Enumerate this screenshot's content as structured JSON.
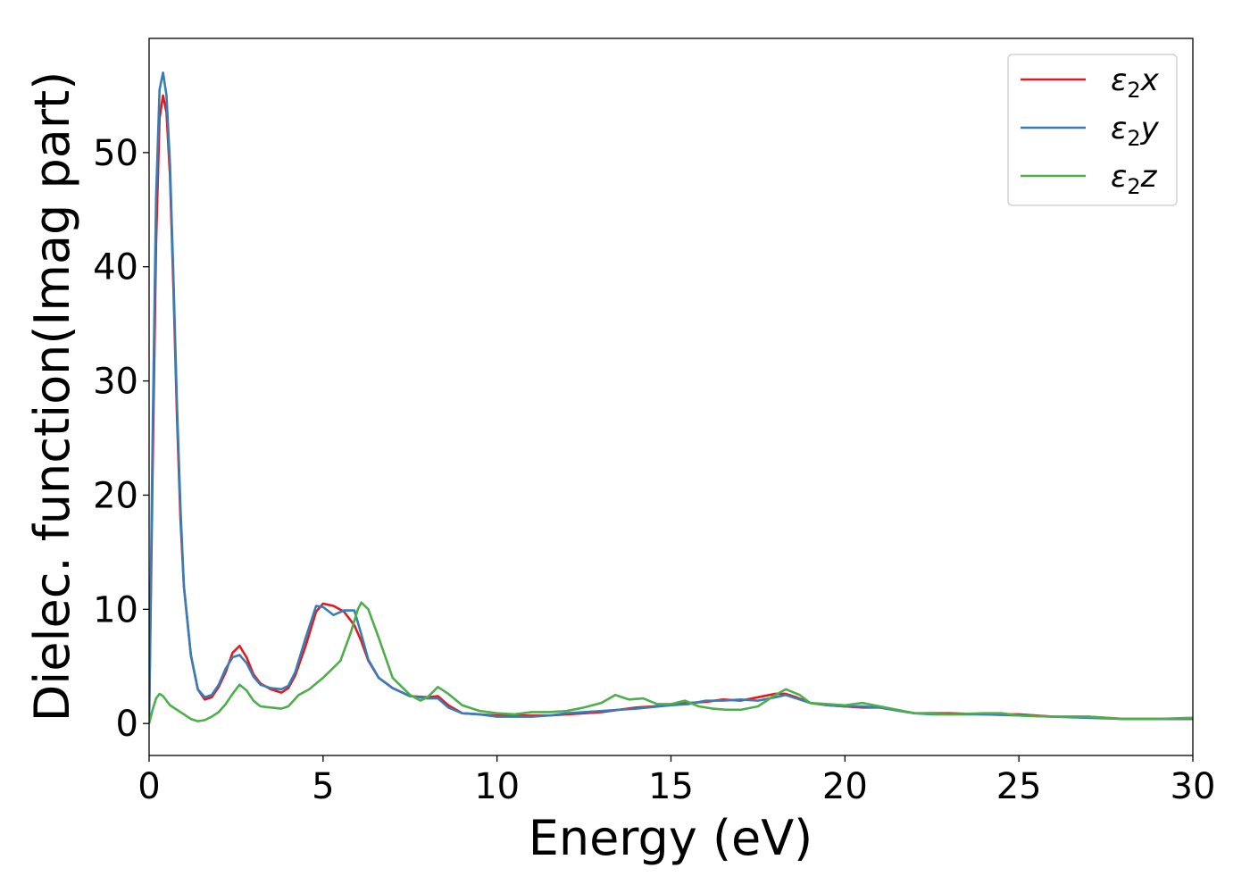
{
  "chart_data": {
    "type": "line",
    "title": "",
    "xlabel": "Energy (eV)",
    "ylabel": "Dielec. function(Imag part)",
    "xlim": [
      0,
      30
    ],
    "ylim": [
      -2.8,
      60
    ],
    "xticks": [
      0,
      5,
      10,
      15,
      20,
      25,
      30
    ],
    "yticks": [
      0,
      10,
      20,
      30,
      40,
      50
    ],
    "grid": false,
    "legend_position": "top-right",
    "series": [
      {
        "name": "ε₂x",
        "legend": {
          "base": "ε",
          "sub": "2",
          "suffix": "x"
        },
        "color": "#e41a1c",
        "x": [
          0,
          0.1,
          0.2,
          0.3,
          0.4,
          0.5,
          0.6,
          0.7,
          0.8,
          0.9,
          1.0,
          1.2,
          1.4,
          1.6,
          1.8,
          2.0,
          2.2,
          2.4,
          2.6,
          2.8,
          3.0,
          3.2,
          3.5,
          3.8,
          4.0,
          4.2,
          4.5,
          4.8,
          5.0,
          5.3,
          5.6,
          5.9,
          6.1,
          6.3,
          6.6,
          7.0,
          7.5,
          8.0,
          8.3,
          8.6,
          9.0,
          9.5,
          10.0,
          10.5,
          11.0,
          11.5,
          12.0,
          13.0,
          14.0,
          15.0,
          15.5,
          16.0,
          16.5,
          17.0,
          17.5,
          18.0,
          18.3,
          18.6,
          19.0,
          19.5,
          20.0,
          20.5,
          21.0,
          22.0,
          22.5,
          23.0,
          24.0,
          25.0,
          26.0,
          27.0,
          28.0,
          29.0,
          30.0
        ],
        "y": [
          0,
          22,
          42,
          53,
          55,
          53.5,
          48,
          38,
          27,
          18,
          12,
          6,
          3,
          2.1,
          2.3,
          3.2,
          4.5,
          6.2,
          6.8,
          5.8,
          4.3,
          3.5,
          3,
          2.7,
          3.1,
          4.2,
          6.8,
          9.8,
          10.5,
          10.3,
          9.8,
          8.6,
          7.2,
          5.5,
          4,
          3.1,
          2.4,
          2.3,
          2.4,
          1.6,
          0.9,
          0.8,
          0.7,
          0.7,
          0.7,
          0.7,
          0.8,
          1,
          1.4,
          1.6,
          1.8,
          1.9,
          2.1,
          2.0,
          2.3,
          2.6,
          2.6,
          2.3,
          1.8,
          1.6,
          1.5,
          1.4,
          1.4,
          0.9,
          0.9,
          0.9,
          0.8,
          0.8,
          0.6,
          0.6,
          0.4,
          0.4,
          0.4
        ]
      },
      {
        "name": "ε₂y",
        "legend": {
          "base": "ε",
          "sub": "2",
          "suffix": "y"
        },
        "color": "#377eb8",
        "x": [
          0,
          0.1,
          0.2,
          0.3,
          0.4,
          0.5,
          0.6,
          0.7,
          0.8,
          0.9,
          1.0,
          1.2,
          1.4,
          1.6,
          1.8,
          2.0,
          2.2,
          2.4,
          2.6,
          2.8,
          3.0,
          3.2,
          3.5,
          3.8,
          4.0,
          4.2,
          4.5,
          4.8,
          5.0,
          5.3,
          5.6,
          5.9,
          6.1,
          6.3,
          6.6,
          7.0,
          7.5,
          8.0,
          8.3,
          8.6,
          9.0,
          9.5,
          10.0,
          10.5,
          11.0,
          11.5,
          12.0,
          13.0,
          14.0,
          15.0,
          15.5,
          16.0,
          16.5,
          17.0,
          17.5,
          18.0,
          18.3,
          18.6,
          19.0,
          19.5,
          20.0,
          20.5,
          21.0,
          22.0,
          22.5,
          23.0,
          24.0,
          25.0,
          26.0,
          27.0,
          28.0,
          29.0,
          30.0
        ],
        "y": [
          0,
          25,
          46,
          55.5,
          57,
          55,
          49,
          39,
          28,
          19,
          12,
          6,
          3,
          2.3,
          2.5,
          3.4,
          4.8,
          5.8,
          6,
          5.3,
          4.1,
          3.4,
          3.1,
          3,
          3.3,
          4.5,
          7.5,
          10.3,
          10.2,
          9.5,
          9.9,
          9.9,
          7.8,
          5.6,
          4,
          3.1,
          2.4,
          2.2,
          2.2,
          1.4,
          0.9,
          0.8,
          0.6,
          0.6,
          0.6,
          0.7,
          0.9,
          1.1,
          1.3,
          1.6,
          1.7,
          2.0,
          2.0,
          2.1,
          2.0,
          2.3,
          2.5,
          2.2,
          1.8,
          1.6,
          1.5,
          1.5,
          1.4,
          0.9,
          0.8,
          0.8,
          0.8,
          0.7,
          0.6,
          0.5,
          0.4,
          0.4,
          0.4
        ]
      },
      {
        "name": "ε₂z",
        "legend": {
          "base": "ε",
          "sub": "2",
          "suffix": "z"
        },
        "color": "#4daf4a",
        "x": [
          0,
          0.1,
          0.2,
          0.3,
          0.4,
          0.6,
          0.8,
          1.0,
          1.2,
          1.4,
          1.6,
          1.8,
          2.0,
          2.2,
          2.4,
          2.6,
          2.8,
          3.0,
          3.2,
          3.5,
          3.8,
          4.0,
          4.3,
          4.6,
          5.0,
          5.5,
          5.8,
          6.0,
          6.1,
          6.3,
          6.6,
          7.0,
          7.5,
          7.8,
          8.0,
          8.3,
          8.6,
          9.0,
          9.5,
          10.0,
          10.5,
          11.0,
          11.5,
          12.0,
          12.5,
          13.0,
          13.4,
          13.8,
          14.2,
          14.6,
          15.0,
          15.4,
          15.8,
          16.2,
          16.6,
          17.0,
          17.5,
          18.0,
          18.3,
          18.7,
          19.0,
          19.5,
          20.0,
          20.5,
          21.0,
          22.0,
          23.0,
          24.0,
          24.5,
          25.0,
          26.0,
          27.0,
          28.0,
          29.0,
          30.0
        ],
        "y": [
          0,
          1.2,
          2.2,
          2.6,
          2.4,
          1.6,
          1.2,
          0.8,
          0.4,
          0.2,
          0.3,
          0.6,
          1.0,
          1.7,
          2.6,
          3.4,
          2.9,
          2.0,
          1.5,
          1.4,
          1.3,
          1.5,
          2.5,
          3.0,
          4.0,
          5.5,
          8.0,
          10,
          10.6,
          10,
          7.5,
          4.0,
          2.5,
          2.0,
          2.3,
          3.2,
          2.6,
          1.6,
          1.1,
          0.9,
          0.8,
          1.0,
          1.0,
          1.1,
          1.4,
          1.8,
          2.5,
          2.1,
          2.2,
          1.7,
          1.7,
          2.0,
          1.5,
          1.3,
          1.2,
          1.2,
          1.5,
          2.5,
          3.0,
          2.5,
          1.8,
          1.7,
          1.6,
          1.8,
          1.5,
          0.9,
          0.8,
          0.9,
          0.9,
          0.7,
          0.6,
          0.6,
          0.4,
          0.4,
          0.5
        ]
      }
    ]
  }
}
